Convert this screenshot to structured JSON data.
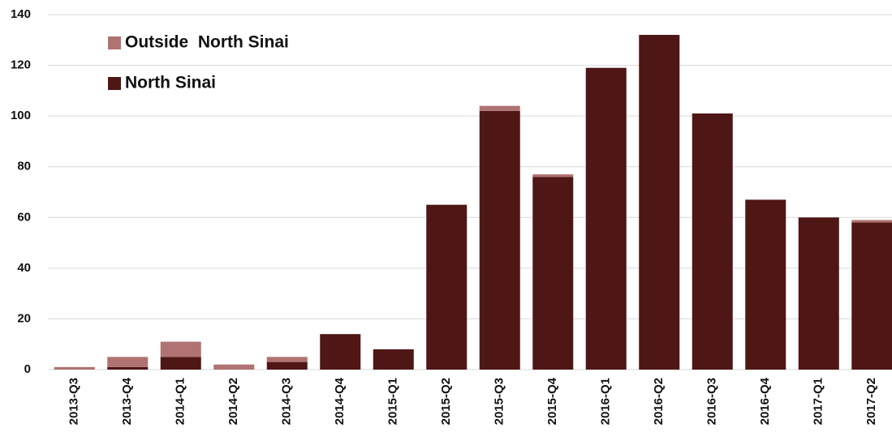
{
  "chart_data": {
    "type": "stacked_bar",
    "categories": [
      "2013-Q3",
      "2013-Q4",
      "2014-Q1",
      "2014-Q2",
      "2014-Q3",
      "2014-Q4",
      "2015-Q1",
      "2015-Q2",
      "2015-Q3",
      "2015-Q4",
      "2016-Q1",
      "2016-Q2",
      "2016-Q3",
      "2016-Q4",
      "2017-Q1",
      "2017-Q2"
    ],
    "series": [
      {
        "name": "North Sinai",
        "color": "#4f1616",
        "values": [
          0,
          1,
          5,
          0,
          3,
          14,
          8,
          65,
          102,
          76,
          119,
          132,
          101,
          67,
          60,
          58
        ]
      },
      {
        "name": "Outside  North Sinai",
        "color": "#b07272",
        "values": [
          1,
          4,
          6,
          2,
          2,
          0,
          0,
          0,
          2,
          1,
          0,
          0,
          0,
          0,
          0,
          1
        ]
      }
    ],
    "ylim": [
      0,
      140
    ],
    "yticks": [
      0,
      20,
      40,
      60,
      80,
      100,
      120,
      140
    ],
    "grid": true,
    "legend": "top-left"
  }
}
